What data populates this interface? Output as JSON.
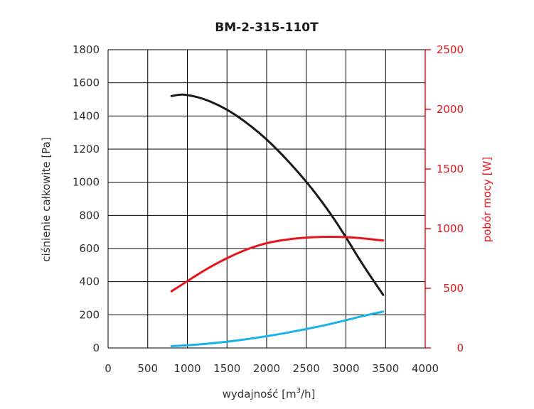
{
  "chart_data": {
    "type": "line",
    "title": "BM-2-315-110T",
    "xlabel": "wydajność [m³/h]",
    "ylabel": "ciśnienie całkowite [Pa]",
    "y2label": "pobór mocy [W]",
    "xlim": [
      0,
      4000
    ],
    "ylim": [
      0,
      1800
    ],
    "y2lim": [
      0,
      2500
    ],
    "x_ticks": [
      "0",
      "500",
      "1000",
      "1500",
      "2000",
      "2500",
      "3000",
      "3500",
      "4000"
    ],
    "y_ticks": [
      "0",
      "200",
      "400",
      "600",
      "800",
      "1000",
      "1200",
      "1400",
      "1600",
      "1800"
    ],
    "y2_ticks": [
      "0",
      "500",
      "1000",
      "1500",
      "2000",
      "2500"
    ],
    "grid": true,
    "series": [
      {
        "axis": "left",
        "color": "#1a1a1a",
        "x": [
          800,
          900,
          1000,
          1200,
          1400,
          1600,
          1800,
          2000,
          2200,
          2400,
          2600,
          2800,
          3000,
          3200,
          3470
        ],
        "y": [
          1520,
          1530,
          1528,
          1505,
          1465,
          1410,
          1340,
          1260,
          1165,
          1060,
          945,
          815,
          670,
          510,
          320
        ]
      },
      {
        "axis": "right",
        "color": "#e8141c",
        "x": [
          800,
          1000,
          1200,
          1400,
          1600,
          1800,
          2000,
          2200,
          2400,
          2600,
          2800,
          3000,
          3200,
          3470
        ],
        "y": [
          475,
          560,
          645,
          720,
          785,
          840,
          880,
          905,
          920,
          930,
          932,
          930,
          920,
          900
        ]
      },
      {
        "axis": "right",
        "color": "#1ab2e8",
        "x": [
          800,
          1000,
          1200,
          1400,
          1600,
          1800,
          2000,
          2200,
          2400,
          2600,
          2800,
          3000,
          3200,
          3470
        ],
        "y": [
          15,
          22,
          32,
          45,
          60,
          78,
          98,
          120,
          145,
          172,
          200,
          232,
          266,
          305
        ]
      }
    ],
    "colors": {
      "left_axis": "#333333",
      "right_axis": "#e8141c",
      "grid": "#000000"
    }
  }
}
